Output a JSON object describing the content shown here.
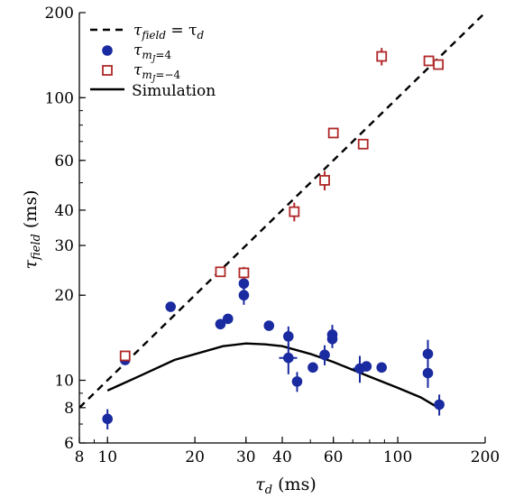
{
  "chart_data": {
    "type": "scatter",
    "x_scale": "log",
    "y_scale": "log",
    "xlim": [
      8,
      200
    ],
    "ylim": [
      6,
      200
    ],
    "xlabel": {
      "main": "τ",
      "sub": "d",
      "unit": " (ms)"
    },
    "ylabel": {
      "main": "τ",
      "sub": "field",
      "unit": " (ms)"
    },
    "x_ticks": [
      8,
      10,
      20,
      30,
      40,
      60,
      100,
      200
    ],
    "y_ticks": [
      6,
      8,
      10,
      20,
      30,
      40,
      60,
      100,
      200
    ],
    "legend_position": "top-left",
    "colors": {
      "blue": "#1a2aa0",
      "red": "#b02828",
      "black": "#000000"
    },
    "series": [
      {
        "key": "identity",
        "kind": "dashed-line",
        "legend": {
          "main": "τ",
          "sub": "field",
          "eq": " = τ",
          "sub2": "d"
        },
        "x": [
          8,
          200
        ],
        "y": [
          8,
          200
        ]
      },
      {
        "key": "mj_plus",
        "kind": "filled-circle",
        "legend": {
          "main": "τ",
          "sub": "m",
          "subsub": "J",
          "tail": "=4"
        },
        "points": [
          {
            "x": 10,
            "y": 7.3,
            "yerr": 0.6
          },
          {
            "x": 11.5,
            "y": 11.8
          },
          {
            "x": 16.5,
            "y": 18.2
          },
          {
            "x": 24.5,
            "y": 15.8
          },
          {
            "x": 26,
            "y": 16.5
          },
          {
            "x": 29.5,
            "y": 20,
            "yerr": 1.5
          },
          {
            "x": 29.5,
            "y": 22,
            "yerr": 1.2
          },
          {
            "x": 36,
            "y": 15.6
          },
          {
            "x": 42,
            "y": 14.3,
            "yerr": 1.2
          },
          {
            "x": 42,
            "y": 12,
            "yerr": 1.5,
            "xerr": 3
          },
          {
            "x": 45,
            "y": 9.9,
            "yerr": 0.8
          },
          {
            "x": 51,
            "y": 11.1
          },
          {
            "x": 56,
            "y": 12.3,
            "yerr": 1
          },
          {
            "x": 59.5,
            "y": 14.5,
            "yerr": 1.2
          },
          {
            "x": 59.5,
            "y": 14,
            "yerr": 1
          },
          {
            "x": 74,
            "y": 11,
            "yerr": 1.2,
            "xerr": 4
          },
          {
            "x": 78,
            "y": 11.2
          },
          {
            "x": 88,
            "y": 11.1
          },
          {
            "x": 127,
            "y": 12.4,
            "yerr": 1.5
          },
          {
            "x": 127,
            "y": 10.6,
            "yerr": 1.2
          },
          {
            "x": 139,
            "y": 8.2,
            "yerr": 0.7
          }
        ]
      },
      {
        "key": "mj_minus",
        "kind": "open-square",
        "legend": {
          "main": "τ",
          "sub": "m",
          "subsub": "J",
          "tail": "=−4"
        },
        "points": [
          {
            "x": 11.5,
            "y": 12.2
          },
          {
            "x": 24.5,
            "y": 24.2
          },
          {
            "x": 29.5,
            "y": 24,
            "yerr": 1.2
          },
          {
            "x": 44,
            "y": 39.5,
            "yerr": 3
          },
          {
            "x": 56,
            "y": 51,
            "yerr": 4
          },
          {
            "x": 60,
            "y": 75
          },
          {
            "x": 76,
            "y": 68.5
          },
          {
            "x": 88,
            "y": 140,
            "yerr": 10
          },
          {
            "x": 128,
            "y": 135
          },
          {
            "x": 138,
            "y": 131
          }
        ]
      },
      {
        "key": "simulation",
        "kind": "solid-line",
        "legend": {
          "text": "Simulation"
        },
        "x": [
          10,
          12.5,
          17,
          25,
          30,
          35,
          40,
          50,
          60,
          80,
          100,
          120,
          135
        ],
        "y": [
          9.2,
          10.2,
          11.8,
          13.2,
          13.5,
          13.4,
          13.2,
          12.4,
          11.6,
          10.3,
          9.4,
          8.7,
          8.1
        ]
      }
    ]
  }
}
